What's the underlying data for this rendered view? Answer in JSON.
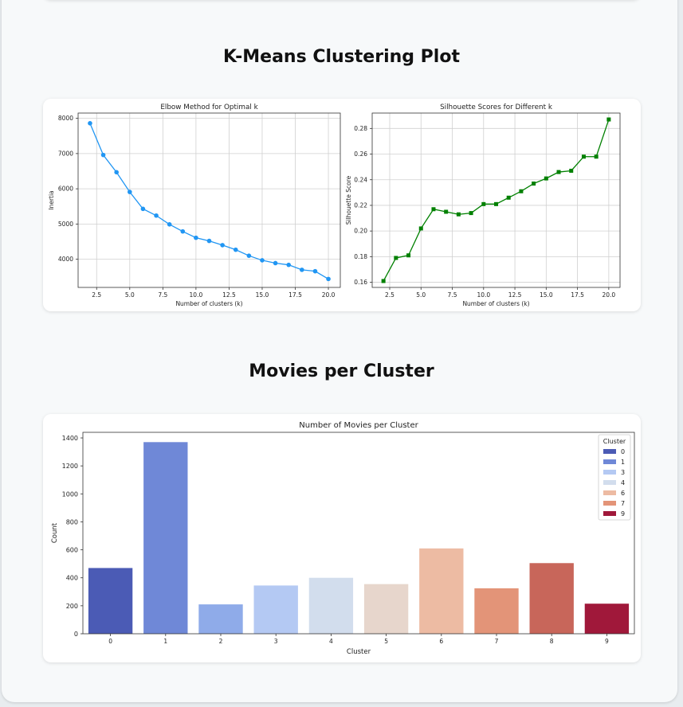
{
  "sections": {
    "kmeans_title": "K-Means Clustering Plot",
    "movies_title": "Movies per Cluster"
  },
  "chart_data": [
    {
      "type": "line",
      "title": "Elbow Method for Optimal k",
      "xlabel": "Number of clusters (k)",
      "ylabel": "Inertia",
      "xlim": [
        1.1,
        20.9
      ],
      "ylim": [
        3200,
        8150
      ],
      "xticks": [
        2.5,
        5.0,
        7.5,
        10.0,
        12.5,
        15.0,
        17.5,
        20.0
      ],
      "yticks": [
        4000,
        5000,
        6000,
        7000,
        8000
      ],
      "grid": true,
      "color": "#2196f3",
      "marker": "circle",
      "x": [
        2,
        3,
        4,
        5,
        6,
        7,
        8,
        9,
        10,
        11,
        12,
        13,
        14,
        15,
        16,
        17,
        18,
        19,
        20
      ],
      "y": [
        7860,
        6960,
        6470,
        5910,
        5430,
        5240,
        4990,
        4790,
        4610,
        4520,
        4400,
        4270,
        4100,
        3970,
        3890,
        3840,
        3700,
        3660,
        3440
      ]
    },
    {
      "type": "line",
      "title": "Silhouette Scores for Different k",
      "xlabel": "Number of clusters (k)",
      "ylabel": "Silhouette Score",
      "xlim": [
        1.1,
        20.9
      ],
      "ylim": [
        0.156,
        0.292
      ],
      "xticks": [
        2.5,
        5.0,
        7.5,
        10.0,
        12.5,
        15.0,
        17.5,
        20.0
      ],
      "yticks": [
        0.16,
        0.18,
        0.2,
        0.22,
        0.24,
        0.26,
        0.28
      ],
      "grid": true,
      "color": "#008000",
      "marker": "square",
      "x": [
        2,
        3,
        4,
        5,
        6,
        7,
        8,
        9,
        10,
        11,
        12,
        13,
        14,
        15,
        16,
        17,
        18,
        19,
        20
      ],
      "y": [
        0.161,
        0.179,
        0.181,
        0.202,
        0.217,
        0.215,
        0.213,
        0.214,
        0.221,
        0.221,
        0.226,
        0.231,
        0.237,
        0.241,
        0.246,
        0.247,
        0.258,
        0.258,
        0.287
      ]
    },
    {
      "type": "bar",
      "title": "Number of Movies per Cluster",
      "xlabel": "Cluster",
      "ylabel": "Count",
      "ylim": [
        0,
        1440
      ],
      "yticks": [
        0,
        200,
        400,
        600,
        800,
        1000,
        1200,
        1400
      ],
      "grid": false,
      "categories": [
        "0",
        "1",
        "2",
        "3",
        "4",
        "5",
        "6",
        "7",
        "8",
        "9"
      ],
      "values": [
        470,
        1370,
        210,
        345,
        400,
        355,
        610,
        325,
        505,
        215
      ],
      "colors": [
        "#4b5bb5",
        "#6f88d7",
        "#8fabe9",
        "#b4c9f3",
        "#d2dded",
        "#e7d6cc",
        "#edbba3",
        "#e39478",
        "#c8665a",
        "#a0183a"
      ],
      "legend": {
        "title": "Cluster",
        "position": "top-right",
        "entries": [
          {
            "label": "0",
            "color": "#4b5bb5"
          },
          {
            "label": "1",
            "color": "#6f88d7"
          },
          {
            "label": "3",
            "color": "#b4c9f3"
          },
          {
            "label": "4",
            "color": "#d2dded"
          },
          {
            "label": "6",
            "color": "#edbba3"
          },
          {
            "label": "7",
            "color": "#e39478"
          },
          {
            "label": "9",
            "color": "#a0183a"
          }
        ]
      }
    }
  ]
}
